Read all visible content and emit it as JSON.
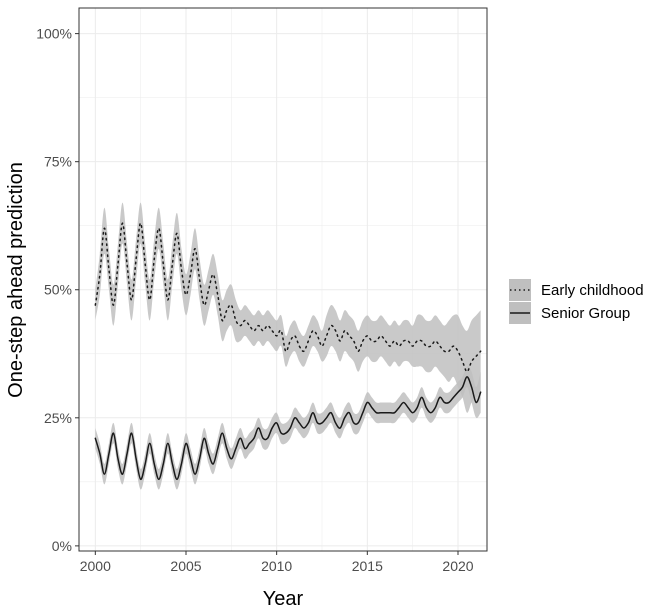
{
  "chart_data": {
    "type": "line",
    "title": "",
    "xlabel": "Year",
    "ylabel": "One-step ahead prediction",
    "xlim": [
      1999.1,
      2021.6
    ],
    "ylim": [
      -0.01,
      1.05
    ],
    "x_ticks": [
      {
        "value": 2000,
        "label": "2000"
      },
      {
        "value": 2005,
        "label": "2005"
      },
      {
        "value": 2010,
        "label": "2010"
      },
      {
        "value": 2015,
        "label": "2015"
      },
      {
        "value": 2020,
        "label": "2020"
      }
    ],
    "y_ticks": [
      {
        "value": 0,
        "label": "0%"
      },
      {
        "value": 0.25,
        "label": "25%"
      },
      {
        "value": 0.5,
        "label": "50%"
      },
      {
        "value": 0.75,
        "label": "75%"
      },
      {
        "value": 1.0,
        "label": "100%"
      }
    ],
    "grid": true,
    "legend_position": "right",
    "colors": {
      "band": "#bfbfbf",
      "line": "#1a1a1a",
      "grid": "#ebebeb",
      "panel_border": "#333333"
    },
    "series": [
      {
        "name": "Early childhood",
        "line_style": "dotted",
        "x": [
          2000.0,
          2000.25,
          2000.5,
          2000.75,
          2001.0,
          2001.25,
          2001.5,
          2001.75,
          2002.0,
          2002.25,
          2002.5,
          2002.75,
          2003.0,
          2003.25,
          2003.5,
          2003.75,
          2004.0,
          2004.25,
          2004.5,
          2004.75,
          2005.0,
          2005.25,
          2005.5,
          2005.75,
          2006.0,
          2006.25,
          2006.5,
          2006.75,
          2007.0,
          2007.25,
          2007.5,
          2007.75,
          2008.0,
          2008.25,
          2008.5,
          2008.75,
          2009.0,
          2009.25,
          2009.5,
          2009.75,
          2010.0,
          2010.25,
          2010.5,
          2010.75,
          2011.0,
          2011.25,
          2011.5,
          2011.75,
          2012.0,
          2012.25,
          2012.5,
          2012.75,
          2013.0,
          2013.25,
          2013.5,
          2013.75,
          2014.0,
          2014.25,
          2014.5,
          2014.75,
          2015.0,
          2015.25,
          2015.5,
          2015.75,
          2016.0,
          2016.25,
          2016.5,
          2016.75,
          2017.0,
          2017.25,
          2017.5,
          2017.75,
          2018.0,
          2018.25,
          2018.5,
          2018.75,
          2019.0,
          2019.25,
          2019.5,
          2019.75,
          2020.0,
          2020.25,
          2020.5,
          2020.75,
          2021.0,
          2021.25
        ],
        "y": [
          0.47,
          0.53,
          0.62,
          0.54,
          0.47,
          0.55,
          0.63,
          0.55,
          0.48,
          0.56,
          0.63,
          0.55,
          0.48,
          0.56,
          0.62,
          0.55,
          0.48,
          0.55,
          0.61,
          0.54,
          0.49,
          0.53,
          0.58,
          0.52,
          0.47,
          0.5,
          0.53,
          0.49,
          0.44,
          0.46,
          0.47,
          0.44,
          0.43,
          0.44,
          0.43,
          0.42,
          0.43,
          0.42,
          0.43,
          0.42,
          0.41,
          0.42,
          0.38,
          0.4,
          0.41,
          0.39,
          0.38,
          0.4,
          0.42,
          0.41,
          0.39,
          0.41,
          0.43,
          0.42,
          0.4,
          0.42,
          0.41,
          0.4,
          0.38,
          0.4,
          0.41,
          0.4,
          0.4,
          0.41,
          0.4,
          0.39,
          0.4,
          0.39,
          0.4,
          0.4,
          0.39,
          0.4,
          0.4,
          0.39,
          0.39,
          0.4,
          0.39,
          0.38,
          0.38,
          0.39,
          0.38,
          0.36,
          0.34,
          0.36,
          0.37,
          0.38
        ],
        "lower": [
          0.44,
          0.49,
          0.57,
          0.5,
          0.43,
          0.51,
          0.59,
          0.51,
          0.44,
          0.52,
          0.59,
          0.51,
          0.44,
          0.52,
          0.58,
          0.51,
          0.44,
          0.51,
          0.57,
          0.5,
          0.45,
          0.49,
          0.54,
          0.48,
          0.43,
          0.46,
          0.49,
          0.45,
          0.4,
          0.42,
          0.43,
          0.4,
          0.4,
          0.41,
          0.4,
          0.39,
          0.4,
          0.39,
          0.4,
          0.39,
          0.38,
          0.39,
          0.35,
          0.37,
          0.38,
          0.36,
          0.35,
          0.37,
          0.39,
          0.38,
          0.36,
          0.37,
          0.39,
          0.38,
          0.36,
          0.38,
          0.37,
          0.36,
          0.34,
          0.36,
          0.37,
          0.36,
          0.36,
          0.37,
          0.36,
          0.35,
          0.36,
          0.35,
          0.36,
          0.36,
          0.35,
          0.35,
          0.35,
          0.34,
          0.34,
          0.35,
          0.34,
          0.33,
          0.32,
          0.33,
          0.31,
          0.29,
          0.26,
          0.28,
          0.29,
          0.3
        ],
        "upper": [
          0.5,
          0.57,
          0.66,
          0.58,
          0.51,
          0.59,
          0.67,
          0.59,
          0.52,
          0.6,
          0.67,
          0.59,
          0.52,
          0.6,
          0.66,
          0.59,
          0.52,
          0.59,
          0.65,
          0.58,
          0.53,
          0.57,
          0.62,
          0.56,
          0.51,
          0.54,
          0.57,
          0.53,
          0.48,
          0.5,
          0.51,
          0.48,
          0.46,
          0.47,
          0.46,
          0.45,
          0.46,
          0.45,
          0.46,
          0.45,
          0.44,
          0.45,
          0.41,
          0.43,
          0.44,
          0.42,
          0.41,
          0.43,
          0.45,
          0.44,
          0.42,
          0.45,
          0.47,
          0.46,
          0.44,
          0.46,
          0.45,
          0.44,
          0.42,
          0.44,
          0.45,
          0.44,
          0.44,
          0.45,
          0.44,
          0.43,
          0.44,
          0.43,
          0.44,
          0.44,
          0.43,
          0.45,
          0.45,
          0.44,
          0.44,
          0.45,
          0.44,
          0.43,
          0.44,
          0.45,
          0.45,
          0.43,
          0.42,
          0.44,
          0.45,
          0.46
        ]
      },
      {
        "name": "Senior Group",
        "line_style": "solid",
        "x": [
          2000.0,
          2000.25,
          2000.5,
          2000.75,
          2001.0,
          2001.25,
          2001.5,
          2001.75,
          2002.0,
          2002.25,
          2002.5,
          2002.75,
          2003.0,
          2003.25,
          2003.5,
          2003.75,
          2004.0,
          2004.25,
          2004.5,
          2004.75,
          2005.0,
          2005.25,
          2005.5,
          2005.75,
          2006.0,
          2006.25,
          2006.5,
          2006.75,
          2007.0,
          2007.25,
          2007.5,
          2007.75,
          2008.0,
          2008.25,
          2008.5,
          2008.75,
          2009.0,
          2009.25,
          2009.5,
          2009.75,
          2010.0,
          2010.25,
          2010.5,
          2010.75,
          2011.0,
          2011.25,
          2011.5,
          2011.75,
          2012.0,
          2012.25,
          2012.5,
          2012.75,
          2013.0,
          2013.25,
          2013.5,
          2013.75,
          2014.0,
          2014.25,
          2014.5,
          2014.75,
          2015.0,
          2015.25,
          2015.5,
          2015.75,
          2016.0,
          2016.25,
          2016.5,
          2016.75,
          2017.0,
          2017.25,
          2017.5,
          2017.75,
          2018.0,
          2018.25,
          2018.5,
          2018.75,
          2019.0,
          2019.25,
          2019.5,
          2019.75,
          2020.0,
          2020.25,
          2020.5,
          2020.75,
          2021.0,
          2021.25
        ],
        "y": [
          0.21,
          0.18,
          0.14,
          0.18,
          0.22,
          0.17,
          0.14,
          0.18,
          0.22,
          0.17,
          0.13,
          0.16,
          0.2,
          0.16,
          0.13,
          0.16,
          0.2,
          0.16,
          0.13,
          0.16,
          0.2,
          0.17,
          0.14,
          0.17,
          0.21,
          0.18,
          0.16,
          0.19,
          0.22,
          0.19,
          0.17,
          0.19,
          0.21,
          0.19,
          0.2,
          0.21,
          0.23,
          0.21,
          0.21,
          0.23,
          0.24,
          0.22,
          0.22,
          0.23,
          0.25,
          0.24,
          0.23,
          0.24,
          0.26,
          0.24,
          0.24,
          0.25,
          0.26,
          0.24,
          0.23,
          0.25,
          0.26,
          0.24,
          0.24,
          0.26,
          0.28,
          0.27,
          0.26,
          0.26,
          0.26,
          0.26,
          0.26,
          0.27,
          0.28,
          0.27,
          0.26,
          0.27,
          0.29,
          0.27,
          0.26,
          0.27,
          0.29,
          0.28,
          0.28,
          0.29,
          0.3,
          0.31,
          0.33,
          0.31,
          0.28,
          0.3
        ],
        "lower": [
          0.19,
          0.16,
          0.12,
          0.16,
          0.2,
          0.15,
          0.12,
          0.16,
          0.2,
          0.15,
          0.11,
          0.14,
          0.18,
          0.14,
          0.11,
          0.14,
          0.18,
          0.14,
          0.11,
          0.14,
          0.18,
          0.15,
          0.12,
          0.15,
          0.19,
          0.16,
          0.14,
          0.17,
          0.2,
          0.17,
          0.15,
          0.17,
          0.19,
          0.17,
          0.18,
          0.19,
          0.21,
          0.19,
          0.19,
          0.21,
          0.22,
          0.2,
          0.2,
          0.21,
          0.23,
          0.22,
          0.21,
          0.22,
          0.24,
          0.22,
          0.22,
          0.23,
          0.24,
          0.22,
          0.21,
          0.23,
          0.24,
          0.22,
          0.22,
          0.24,
          0.26,
          0.25,
          0.24,
          0.24,
          0.24,
          0.24,
          0.24,
          0.25,
          0.26,
          0.25,
          0.24,
          0.25,
          0.27,
          0.25,
          0.24,
          0.25,
          0.27,
          0.26,
          0.26,
          0.27,
          0.28,
          0.29,
          0.31,
          0.28,
          0.25,
          0.26
        ],
        "upper": [
          0.23,
          0.2,
          0.16,
          0.2,
          0.24,
          0.19,
          0.16,
          0.2,
          0.24,
          0.19,
          0.15,
          0.18,
          0.22,
          0.18,
          0.15,
          0.18,
          0.22,
          0.18,
          0.15,
          0.18,
          0.22,
          0.19,
          0.16,
          0.19,
          0.23,
          0.2,
          0.18,
          0.21,
          0.24,
          0.21,
          0.19,
          0.21,
          0.23,
          0.21,
          0.22,
          0.23,
          0.25,
          0.23,
          0.23,
          0.25,
          0.26,
          0.24,
          0.24,
          0.25,
          0.27,
          0.26,
          0.25,
          0.26,
          0.28,
          0.26,
          0.26,
          0.27,
          0.28,
          0.26,
          0.25,
          0.27,
          0.28,
          0.26,
          0.26,
          0.28,
          0.3,
          0.29,
          0.28,
          0.28,
          0.28,
          0.28,
          0.28,
          0.29,
          0.3,
          0.29,
          0.28,
          0.29,
          0.31,
          0.29,
          0.28,
          0.29,
          0.31,
          0.3,
          0.3,
          0.31,
          0.32,
          0.33,
          0.35,
          0.34,
          0.31,
          0.34
        ]
      }
    ]
  }
}
